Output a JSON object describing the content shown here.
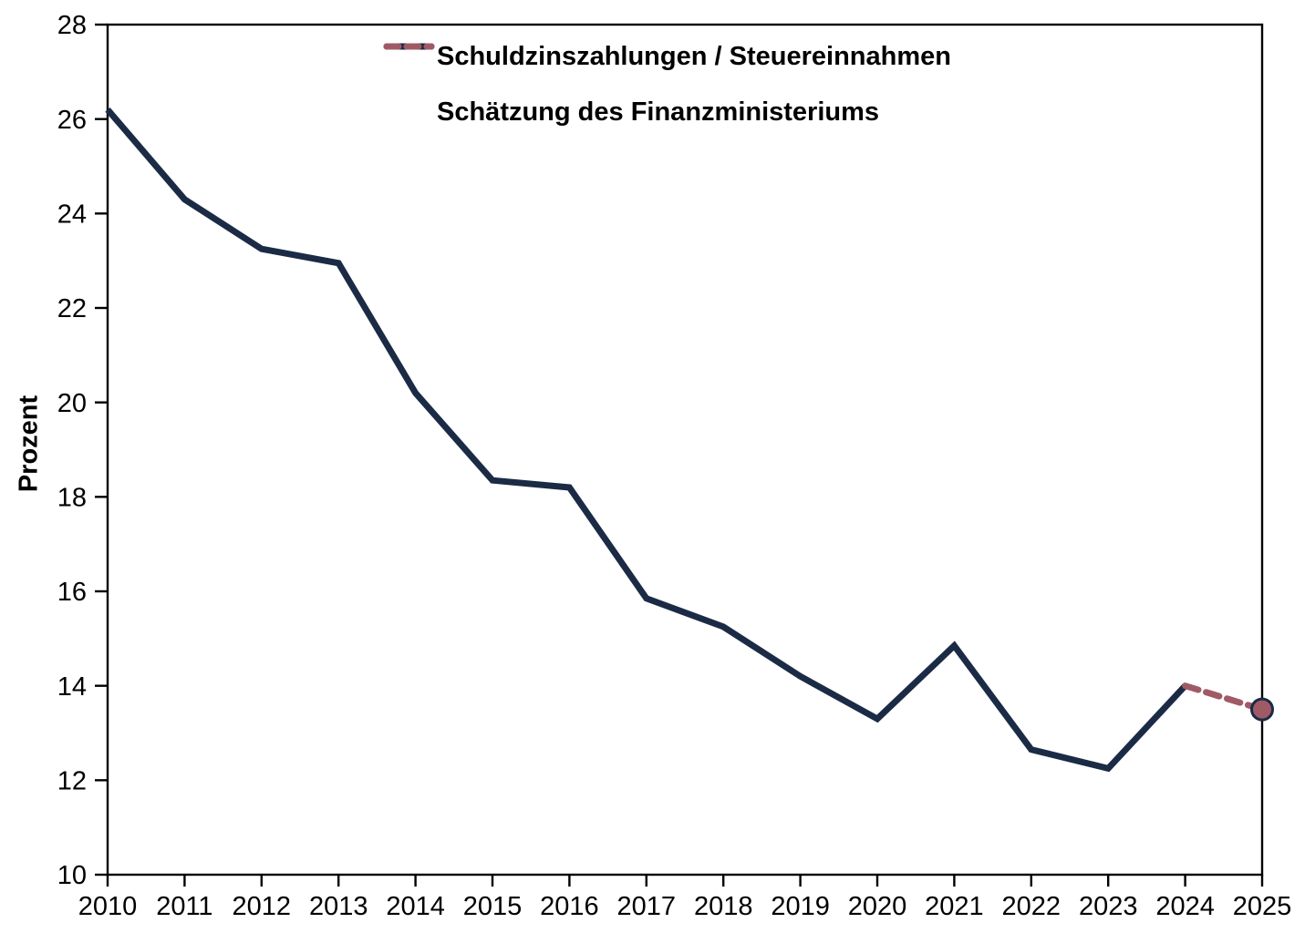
{
  "chart_data": {
    "type": "line",
    "title": "",
    "xlabel": "",
    "ylabel": "Prozent",
    "ylim": [
      10,
      28
    ],
    "ytick_step": 2,
    "y_ticks": [
      28,
      26,
      24,
      22,
      20,
      18,
      16,
      14,
      12,
      10
    ],
    "x": [
      "2010",
      "2011",
      "2012",
      "2013",
      "2014",
      "2015",
      "2016",
      "2017",
      "2018",
      "2019",
      "2020",
      "2021",
      "2022",
      "2023",
      "2024",
      "2025"
    ],
    "series": [
      {
        "name": "Schuldzinszahlungen / Steuereinnahmen",
        "style": "solid",
        "color": "#1b2b45",
        "values": [
          26.2,
          24.3,
          23.25,
          22.95,
          20.2,
          18.35,
          18.2,
          15.85,
          15.25,
          14.2,
          13.3,
          14.85,
          12.65,
          12.25,
          14.0,
          null
        ]
      },
      {
        "name": "Schätzung des Finanzministeriums",
        "style": "dashed",
        "color": "#a05a66",
        "marker_on_last": true,
        "marker_stroke": "#1b2b45",
        "values": [
          null,
          null,
          null,
          null,
          null,
          null,
          null,
          null,
          null,
          null,
          null,
          null,
          null,
          null,
          14.0,
          13.5
        ]
      }
    ],
    "legend_position": "top-center",
    "grid": false,
    "axis_color": "#000000",
    "text_color": "#000000",
    "background_color": "#ffffff"
  }
}
